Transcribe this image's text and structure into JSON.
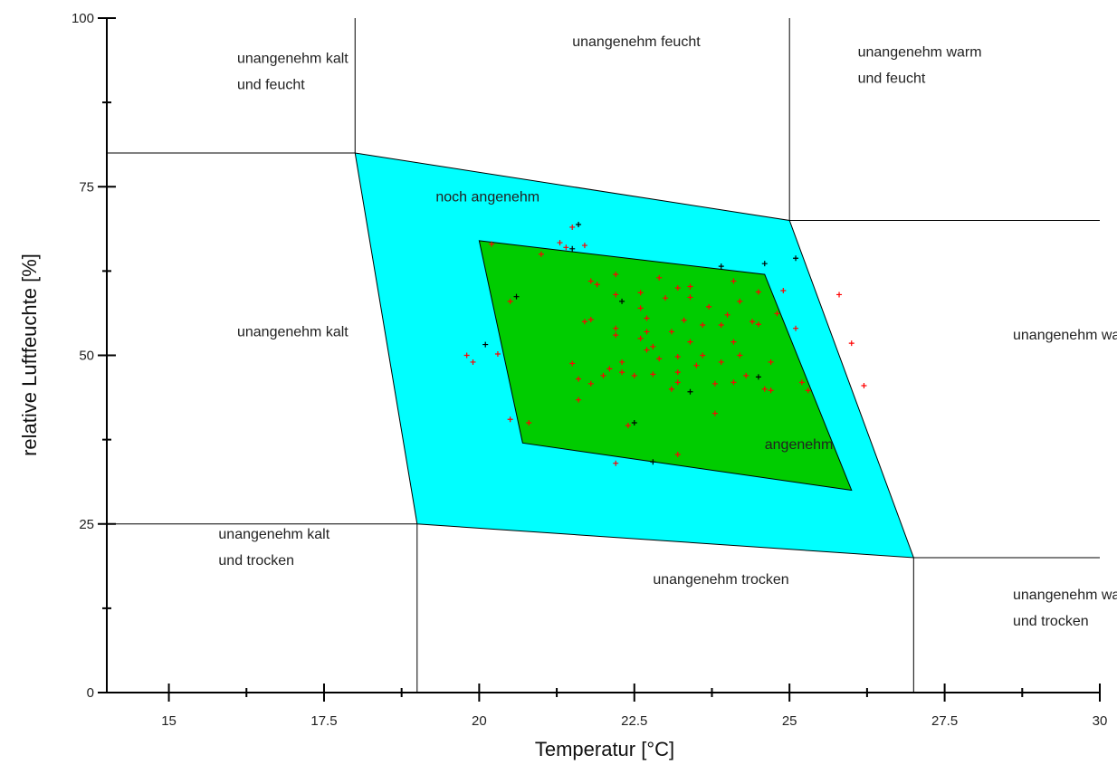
{
  "chart_data": {
    "type": "scatter",
    "title": "",
    "xlabel": "Temperatur [°C]",
    "ylabel": "relative Luftfeuchte [%]",
    "xlim": [
      14,
      30
    ],
    "ylim": [
      0,
      100
    ],
    "xticks": [
      {
        "value": 15,
        "label": "15"
      },
      {
        "value": 17.5,
        "label": "17.5"
      },
      {
        "value": 20,
        "label": "20"
      },
      {
        "value": 22.5,
        "label": "22.5"
      },
      {
        "value": 25,
        "label": "25"
      },
      {
        "value": 27.5,
        "label": "27.5"
      },
      {
        "value": 30,
        "label": "30"
      }
    ],
    "yticks": [
      {
        "value": 0,
        "label": "0"
      },
      {
        "value": 25,
        "label": "25"
      },
      {
        "value": 50,
        "label": "50"
      },
      {
        "value": 75,
        "label": "75"
      },
      {
        "value": 100,
        "label": "100"
      }
    ],
    "grid": false,
    "zone_colors": {
      "noch_angenehm": "#00ffff",
      "angenehm": "#00cc00",
      "lines": "#000000"
    },
    "zone_boundaries": [
      [
        [
          18,
          80
        ],
        [
          18,
          100
        ]
      ],
      [
        [
          25,
          70
        ],
        [
          25,
          100
        ]
      ],
      [
        [
          14,
          80
        ],
        [
          18,
          80
        ]
      ],
      [
        [
          25,
          70
        ],
        [
          30,
          70
        ]
      ],
      [
        [
          14,
          25
        ],
        [
          19,
          25
        ]
      ],
      [
        [
          19,
          0
        ],
        [
          19,
          25
        ]
      ],
      [
        [
          27,
          0
        ],
        [
          27,
          20
        ]
      ],
      [
        [
          27,
          20
        ],
        [
          30,
          20
        ]
      ]
    ],
    "regions": [
      {
        "name": "noch angenehm",
        "color": "#00ffff",
        "polygon": [
          [
            18,
            80
          ],
          [
            25,
            70
          ],
          [
            27,
            20
          ],
          [
            19,
            25
          ]
        ]
      },
      {
        "name": "angenehm",
        "color": "#00cc00",
        "polygon": [
          [
            20,
            67
          ],
          [
            24.6,
            62
          ],
          [
            26,
            30
          ],
          [
            20.7,
            37
          ]
        ]
      }
    ],
    "zone_labels": [
      {
        "lines": [
          "unangenehm kalt",
          "und feucht"
        ],
        "x": 16.1,
        "y": 94
      },
      {
        "lines": [
          "unangenehm feucht"
        ],
        "x": 21.5,
        "y": 96.5
      },
      {
        "lines": [
          "unangenehm warm",
          "und feucht"
        ],
        "x": 26.1,
        "y": 95
      },
      {
        "lines": [
          "noch angenehm"
        ],
        "x": 19.3,
        "y": 73.5
      },
      {
        "lines": [
          "unangenehm kalt"
        ],
        "x": 16.1,
        "y": 53.5
      },
      {
        "lines": [
          "unangenehm warm"
        ],
        "x": 28.6,
        "y": 53
      },
      {
        "lines": [
          "angenehm"
        ],
        "x": 24.6,
        "y": 36.8
      },
      {
        "lines": [
          "unangenehm kalt",
          "und trocken"
        ],
        "x": 15.8,
        "y": 23.5
      },
      {
        "lines": [
          "unangenehm trocken"
        ],
        "x": 22.8,
        "y": 16.8
      },
      {
        "lines": [
          "unangenehm warm",
          "und trocken"
        ],
        "x": 28.6,
        "y": 14.5
      }
    ],
    "series": [
      {
        "color": "#ff0000",
        "points": [
          [
            19.8,
            50
          ],
          [
            19.9,
            49
          ],
          [
            20.3,
            50.2
          ],
          [
            20.5,
            40.5
          ],
          [
            20.8,
            40
          ],
          [
            20.5,
            58
          ],
          [
            21,
            65
          ],
          [
            20.2,
            66.5
          ],
          [
            21.3,
            66.7
          ],
          [
            21.4,
            66
          ],
          [
            21.5,
            69
          ],
          [
            21.7,
            66.3
          ],
          [
            21.5,
            48.8
          ],
          [
            21.6,
            46.5
          ],
          [
            21.6,
            43.4
          ],
          [
            21.8,
            45.8
          ],
          [
            21.7,
            55
          ],
          [
            21.8,
            55.3
          ],
          [
            21.8,
            61
          ],
          [
            21.9,
            60.5
          ],
          [
            22,
            47
          ],
          [
            22.1,
            48
          ],
          [
            22.2,
            54
          ],
          [
            22.2,
            53
          ],
          [
            22.3,
            49
          ],
          [
            22.2,
            59
          ],
          [
            22.2,
            62
          ],
          [
            22.3,
            47.5
          ],
          [
            22.5,
            47
          ],
          [
            22.4,
            39.6
          ],
          [
            22.2,
            34
          ],
          [
            22.6,
            59.3
          ],
          [
            22.6,
            52.5
          ],
          [
            22.7,
            50.8
          ],
          [
            22.7,
            53.5
          ],
          [
            22.7,
            55.5
          ],
          [
            22.8,
            51.3
          ],
          [
            22.8,
            47.2
          ],
          [
            22.9,
            49.5
          ],
          [
            23,
            58.5
          ],
          [
            23.1,
            45
          ],
          [
            23.2,
            46
          ],
          [
            23.2,
            47.5
          ],
          [
            23.1,
            53.5
          ],
          [
            23.3,
            55.2
          ],
          [
            23.2,
            49.8
          ],
          [
            23.2,
            35.3
          ],
          [
            23.4,
            52
          ],
          [
            23.4,
            58.6
          ],
          [
            23.4,
            60.2
          ],
          [
            23.5,
            48.5
          ],
          [
            23.6,
            50
          ],
          [
            23.6,
            54.5
          ],
          [
            23.7,
            57.2
          ],
          [
            23.8,
            45.8
          ],
          [
            23.8,
            41.4
          ],
          [
            23.9,
            49
          ],
          [
            24,
            56
          ],
          [
            23.9,
            54.5
          ],
          [
            24.1,
            46
          ],
          [
            24.1,
            52
          ],
          [
            24.2,
            50
          ],
          [
            24.2,
            58
          ],
          [
            24.3,
            47
          ],
          [
            24.4,
            55
          ],
          [
            24.5,
            54.6
          ],
          [
            24.5,
            59.4
          ],
          [
            24.6,
            45
          ],
          [
            24.7,
            49
          ],
          [
            24.8,
            56.2
          ],
          [
            24.7,
            44.8
          ],
          [
            24.9,
            59.6
          ],
          [
            25.1,
            54
          ],
          [
            25.2,
            46
          ],
          [
            25.3,
            44.8
          ],
          [
            25.8,
            59
          ],
          [
            26,
            51.8
          ],
          [
            26.2,
            45.5
          ],
          [
            24.1,
            61
          ],
          [
            23.2,
            60
          ],
          [
            22.9,
            61.5
          ],
          [
            22.6,
            57
          ]
        ]
      },
      {
        "color": "#000000",
        "points": [
          [
            20.1,
            51.6
          ],
          [
            20.6,
            58.7
          ],
          [
            21.5,
            65.8
          ],
          [
            21.6,
            69.4
          ],
          [
            22.3,
            58
          ],
          [
            22.5,
            40
          ],
          [
            22.8,
            34.2
          ],
          [
            23.4,
            44.6
          ],
          [
            23.9,
            63.2
          ],
          [
            24.5,
            46.8
          ],
          [
            24.6,
            63.6
          ],
          [
            25.1,
            64.4
          ]
        ]
      }
    ]
  }
}
